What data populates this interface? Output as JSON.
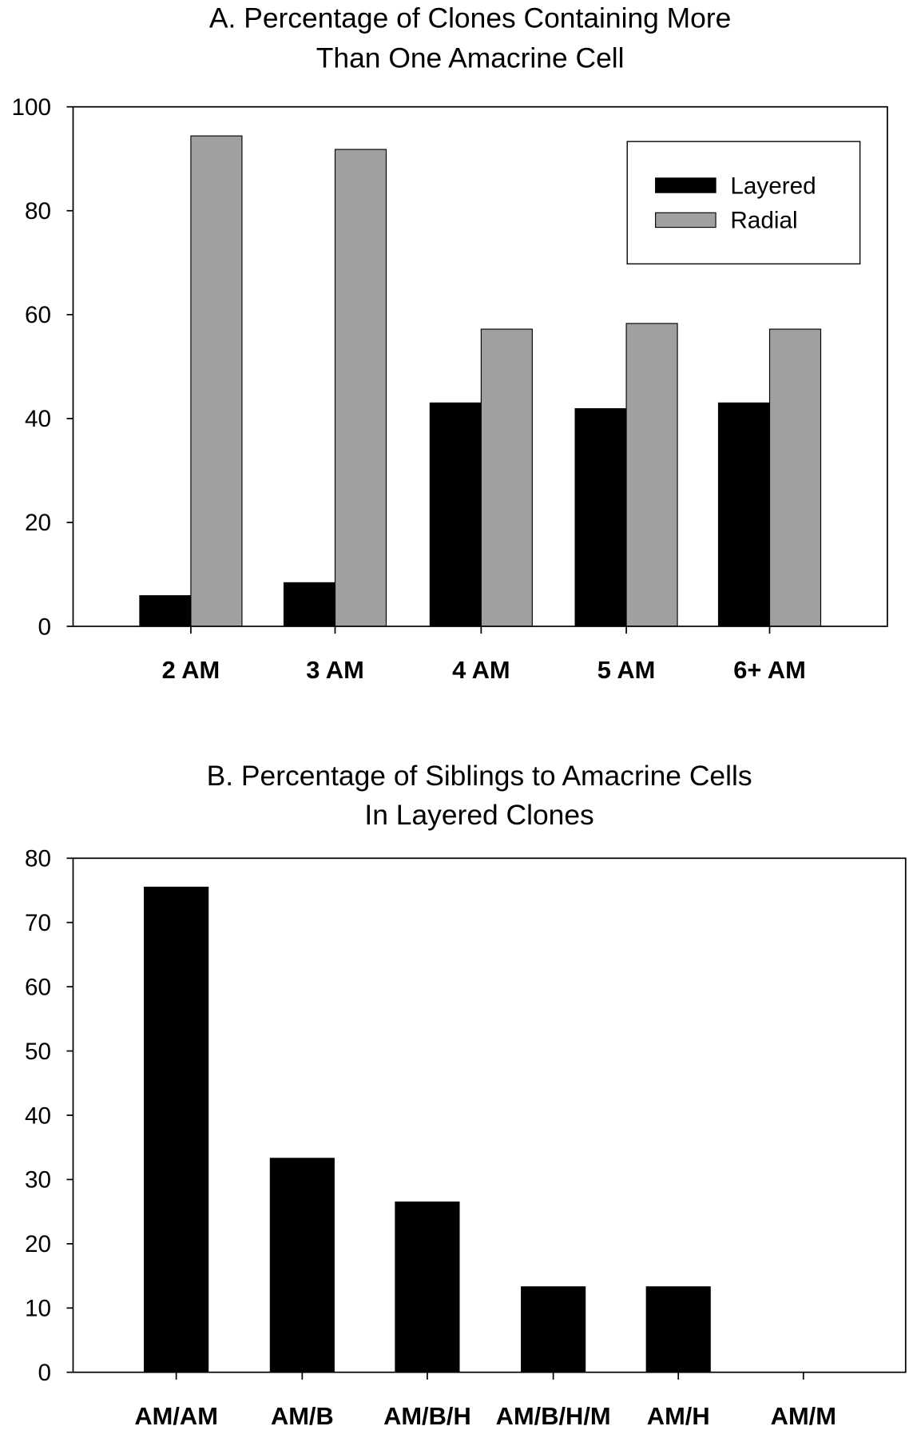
{
  "chart_data": [
    {
      "type": "bar",
      "title": [
        "A. Percentage of Clones Containing More",
        "Than One Amacrine Cell"
      ],
      "xlabel": "",
      "ylabel": "",
      "categories": [
        "2 AM",
        "3 AM",
        "4 AM",
        "5 AM",
        "6+ AM"
      ],
      "series": [
        {
          "name": "Layered",
          "color": "#000000",
          "values": [
            5.9,
            8.4,
            43.0,
            41.9,
            43.0
          ]
        },
        {
          "name": "Radial",
          "color": "#a0a0a0",
          "values": [
            94.4,
            91.8,
            57.2,
            58.3,
            57.2
          ]
        }
      ],
      "ylim": [
        0,
        100
      ],
      "yticks": [
        0,
        20,
        40,
        60,
        80,
        100
      ],
      "legend": "top-right",
      "grid": false
    },
    {
      "type": "bar",
      "title": [
        "B. Percentage of Siblings to Amacrine Cells",
        "In Layered Clones"
      ],
      "xlabel": "",
      "ylabel": "",
      "categories": [
        "AM/AM",
        "AM/B",
        "AM/B/H",
        "AM/B/H/M",
        "AM/H",
        "AM/M"
      ],
      "series": [
        {
          "name": "Layered",
          "color": "#000000",
          "values": [
            75.5,
            33.3,
            26.5,
            13.3,
            13.3,
            0
          ]
        }
      ],
      "ylim": [
        0,
        80
      ],
      "yticks": [
        0,
        10,
        20,
        30,
        40,
        50,
        60,
        70,
        80
      ],
      "grid": false
    }
  ]
}
